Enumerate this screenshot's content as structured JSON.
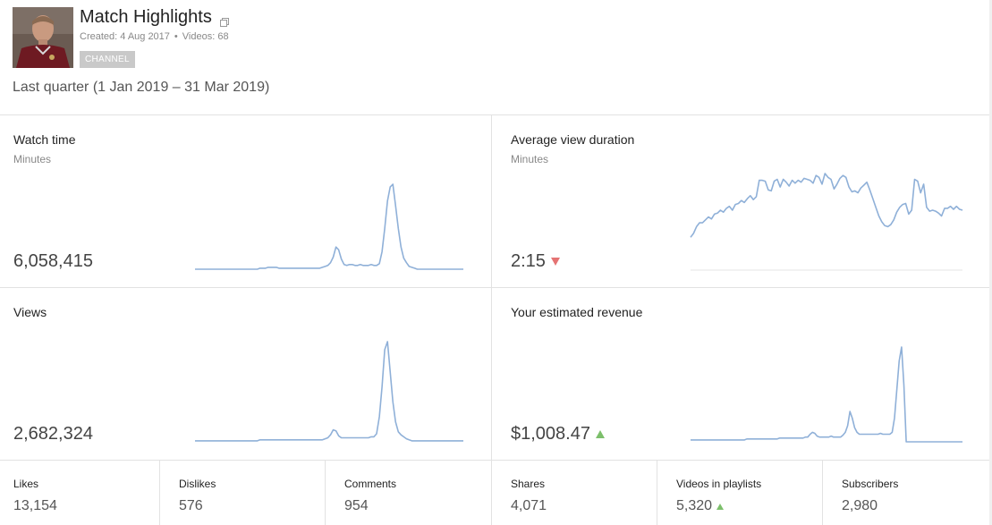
{
  "channel": {
    "title": "Match Highlights",
    "created": "Created: 4 Aug 2017",
    "videos": "Videos: 68",
    "badge": "CHANNEL",
    "date_range": "Last quarter (1 Jan 2019 – 31 Mar 2019)"
  },
  "cards": {
    "watch_time": {
      "title": "Watch time",
      "subtitle": "Minutes",
      "value": "6,058,415"
    },
    "avg_view_duration": {
      "title": "Average view duration",
      "subtitle": "Minutes",
      "value": "2:15",
      "trend": "down"
    },
    "views": {
      "title": "Views",
      "value": "2,682,324"
    },
    "revenue": {
      "title": "Your estimated revenue",
      "value": "$1,008.47",
      "trend": "up"
    }
  },
  "stats": [
    {
      "label": "Likes",
      "value": "13,154"
    },
    {
      "label": "Dislikes",
      "value": "576"
    },
    {
      "label": "Comments",
      "value": "954"
    },
    {
      "label": "Shares",
      "value": "4,071"
    },
    {
      "label": "Videos in playlists",
      "value": "5,320",
      "trend": "up"
    },
    {
      "label": "Subscribers",
      "value": "2,980"
    }
  ],
  "colors": {
    "line": "#8fb0d8",
    "down": "#e57373",
    "up": "#7cbf6b"
  },
  "sparklines": {
    "watch_time": [
      1,
      1,
      1,
      1,
      1,
      1,
      1,
      1,
      1,
      1,
      1,
      1,
      1,
      1,
      1,
      1,
      1,
      1,
      1,
      1,
      1,
      1,
      1,
      1,
      2,
      2,
      2,
      3,
      3,
      3,
      3,
      2,
      2,
      2,
      2,
      2,
      2,
      2,
      2,
      2,
      2,
      2,
      2,
      2,
      2,
      2,
      2,
      3,
      4,
      5,
      8,
      14,
      25,
      22,
      12,
      6,
      5,
      6,
      6,
      5,
      5,
      6,
      5,
      5,
      5,
      6,
      5,
      5,
      7,
      20,
      45,
      75,
      90,
      93,
      70,
      45,
      25,
      13,
      8,
      4,
      3,
      2,
      1,
      1,
      1,
      1,
      1,
      1,
      1,
      1,
      1,
      1,
      1,
      1,
      1,
      1,
      1,
      1,
      1,
      1
    ],
    "avg_view_duration": [
      34,
      38,
      45,
      49,
      49,
      52,
      55,
      53,
      58,
      59,
      62,
      60,
      64,
      66,
      62,
      68,
      69,
      72,
      70,
      74,
      77,
      73,
      76,
      93,
      93,
      92,
      83,
      82,
      92,
      94,
      86,
      94,
      91,
      87,
      93,
      90,
      93,
      91,
      95,
      94,
      93,
      90,
      98,
      96,
      89,
      100,
      96,
      94,
      84,
      89,
      95,
      98,
      96,
      86,
      81,
      82,
      80,
      85,
      88,
      91,
      83,
      74,
      65,
      56,
      50,
      46,
      45,
      47,
      52,
      60,
      65,
      68,
      69,
      58,
      62,
      94,
      92,
      80,
      89,
      65,
      61,
      62,
      61,
      59,
      56,
      64,
      64,
      66,
      63,
      66,
      63,
      62
    ]
  },
  "views_spark": [
    1,
    1,
    1,
    1,
    1,
    1,
    1,
    1,
    1,
    1,
    1,
    1,
    1,
    1,
    1,
    1,
    1,
    1,
    1,
    1,
    1,
    1,
    1,
    1,
    2,
    2,
    2,
    2,
    2,
    2,
    2,
    2,
    2,
    2,
    2,
    2,
    2,
    2,
    2,
    2,
    2,
    2,
    2,
    2,
    2,
    2,
    2,
    2,
    3,
    4,
    7,
    12,
    11,
    6,
    4,
    4,
    4,
    4,
    4,
    4,
    4,
    4,
    4,
    4,
    4,
    5,
    5,
    8,
    25,
    55,
    92,
    100,
    70,
    40,
    20,
    10,
    7,
    5,
    3,
    2,
    1,
    1,
    1,
    1,
    1,
    1,
    1,
    1,
    1,
    1,
    1,
    1,
    1,
    1,
    1,
    1,
    1,
    1,
    1,
    1
  ],
  "revenue_spark": [
    2,
    2,
    2,
    2,
    2,
    2,
    2,
    2,
    2,
    2,
    2,
    2,
    2,
    2,
    2,
    2,
    2,
    2,
    2,
    2,
    2,
    2,
    2,
    2,
    3,
    3,
    3,
    3,
    3,
    3,
    3,
    3,
    3,
    3,
    3,
    3,
    3,
    3,
    4,
    4,
    4,
    4,
    4,
    4,
    4,
    4,
    4,
    4,
    4,
    5,
    5,
    8,
    10,
    9,
    6,
    5,
    5,
    5,
    5,
    5,
    6,
    5,
    5,
    5,
    5,
    7,
    10,
    17,
    32,
    25,
    15,
    10,
    8,
    8,
    8,
    8,
    8,
    8,
    8,
    8,
    8,
    9,
    8,
    8,
    8,
    8,
    10,
    25,
    55,
    85,
    100,
    60,
    0,
    0,
    0,
    0,
    0,
    0,
    0,
    0,
    0,
    0,
    0,
    0,
    0,
    0,
    0,
    0,
    0,
    0,
    0,
    0,
    0,
    0,
    0,
    0,
    0
  ]
}
